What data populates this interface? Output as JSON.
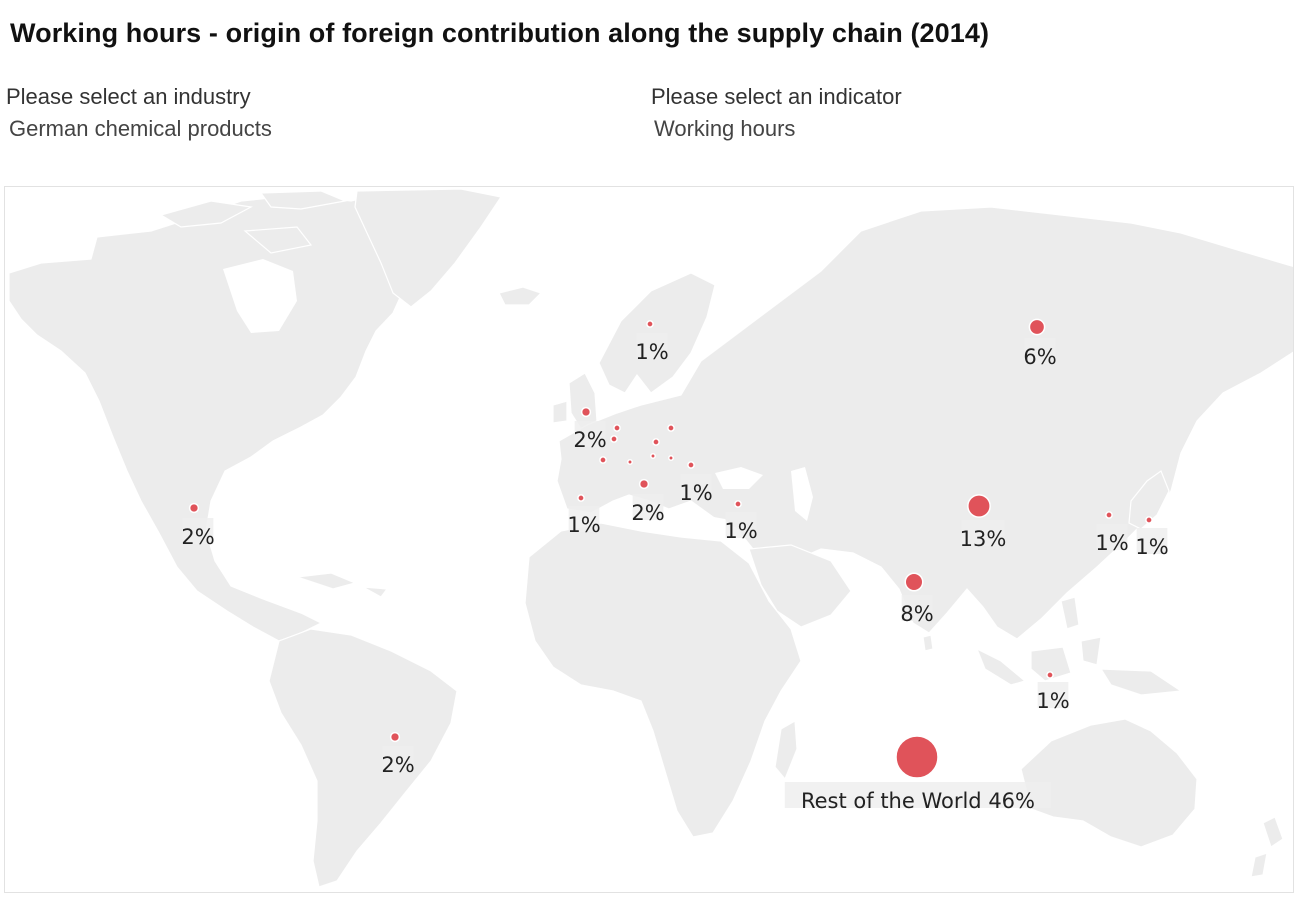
{
  "title": "Working hours - origin of foreign contribution along the supply chain (2014)",
  "filters": {
    "industry": {
      "label": "Please select an industry",
      "value": "German chemical products"
    },
    "indicator": {
      "label": "Please select an indicator",
      "value": "Working hours"
    }
  },
  "colors": {
    "bubble": "#e0535a",
    "land": "#ececec",
    "background": "#ffffff"
  },
  "map": {
    "markers": [
      {
        "id": "usa",
        "region": "United States",
        "value": 2,
        "label": "2%"
      },
      {
        "id": "brazil",
        "region": "Brazil",
        "value": 2,
        "label": "2%"
      },
      {
        "id": "sweden",
        "region": "Sweden",
        "value": 1,
        "label": "1%"
      },
      {
        "id": "uk",
        "region": "United Kingdom",
        "value": 2,
        "label": "2%"
      },
      {
        "id": "belgium",
        "region": "Belgium",
        "value": 1,
        "label": ""
      },
      {
        "id": "germany-west",
        "region": "Netherlands",
        "value": 1,
        "label": ""
      },
      {
        "id": "france",
        "region": "France",
        "value": 1,
        "label": ""
      },
      {
        "id": "switzerland",
        "region": "Switzerland",
        "value": 0.5,
        "label": ""
      },
      {
        "id": "czechia",
        "region": "Czechia",
        "value": 1,
        "label": ""
      },
      {
        "id": "poland",
        "region": "Poland",
        "value": 1,
        "label": ""
      },
      {
        "id": "austria",
        "region": "Austria",
        "value": 0.5,
        "label": ""
      },
      {
        "id": "hungary",
        "region": "Hungary",
        "value": 0.5,
        "label": ""
      },
      {
        "id": "romania",
        "region": "Romania",
        "value": 1,
        "label": "1%"
      },
      {
        "id": "spain",
        "region": "Spain",
        "value": 1,
        "label": "1%"
      },
      {
        "id": "italy",
        "region": "Italy",
        "value": 2,
        "label": "2%"
      },
      {
        "id": "turkey",
        "region": "Turkey",
        "value": 1,
        "label": "1%"
      },
      {
        "id": "russia",
        "region": "Russia",
        "value": 6,
        "label": "6%"
      },
      {
        "id": "china",
        "region": "China",
        "value": 13,
        "label": "13%"
      },
      {
        "id": "india",
        "region": "India",
        "value": 8,
        "label": "8%"
      },
      {
        "id": "korea",
        "region": "South Korea",
        "value": 1,
        "label": "1%"
      },
      {
        "id": "japan",
        "region": "Japan",
        "value": 1,
        "label": "1%"
      },
      {
        "id": "indonesia",
        "region": "Indonesia",
        "value": 1,
        "label": "1%"
      },
      {
        "id": "rest-of-world",
        "region": "Rest of the World",
        "value": 46,
        "label": "Rest of the World 46%"
      }
    ]
  }
}
